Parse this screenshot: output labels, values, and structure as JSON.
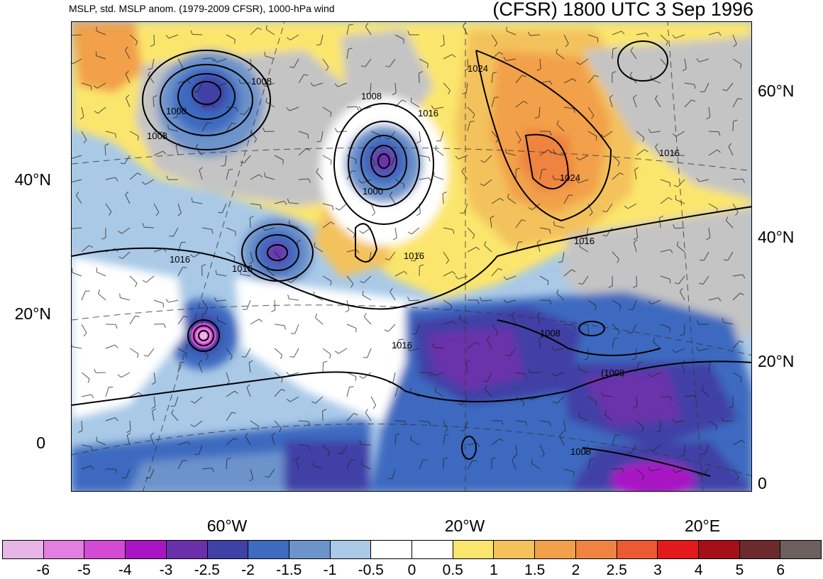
{
  "header": {
    "left_title": "MSLP, std. MSLP anom. (1979-2009 CFSR), 1000-hPa wind",
    "right_title": "(CFSR) 1800 UTC 3 Sep 1996"
  },
  "map": {
    "left_lat_labels": [
      "40°N",
      "20°N",
      "0"
    ],
    "right_lat_labels": [
      "60°N",
      "40°N",
      "20°N",
      "0"
    ],
    "lon_labels": [
      "60°W",
      "20°W",
      "20°E"
    ],
    "contour_labels": [
      "1008",
      "1000",
      "1008",
      "1008",
      "1016",
      "1024",
      "1024",
      "1016",
      "1000",
      "1016",
      "1016",
      "1016",
      "1016",
      "1008",
      "1016",
      "(1008",
      "1008"
    ],
    "colors": {
      "neg6": "#e8b6e6",
      "neg5": "#e27fe0",
      "neg4": "#d54ad4",
      "neg3": "#a816c4",
      "neg25": "#6a30ab",
      "neg2": "#3f41a6",
      "neg15": "#3e6bc0",
      "neg1": "#6d93cb",
      "neg05": "#a9c9e7",
      "zero": "#ffffff",
      "pos05": "#fbe66d",
      "pos1": "#f3c25b",
      "pos15": "#f2a04a",
      "pos2": "#ef8341",
      "pos25": "#ec5a33",
      "pos3": "#e21a1c",
      "pos4": "#a60f17",
      "pos5": "#6b2a2c",
      "pos6": "#6d5f5d",
      "land_gray": "#c4c4c4"
    }
  },
  "colorbar": {
    "labels": [
      "-6",
      "-5",
      "-4",
      "-3",
      "-2.5",
      "-2",
      "-1.5",
      "-1",
      "-0.5",
      "0",
      "0.5",
      "1",
      "1.5",
      "2",
      "2.5",
      "3",
      "4",
      "5",
      "6"
    ],
    "colors": [
      "#e8b6e6",
      "#e27fe0",
      "#d54ad4",
      "#a816c4",
      "#6a30ab",
      "#3f41a6",
      "#3e6bc0",
      "#6d93cb",
      "#a9c9e7",
      "#ffffff",
      "#ffffff",
      "#fbe66d",
      "#f3c25b",
      "#f2a04a",
      "#ef8341",
      "#ec5a33",
      "#e21a1c",
      "#a60f17",
      "#6b2a2c",
      "#6d5f5d"
    ]
  }
}
